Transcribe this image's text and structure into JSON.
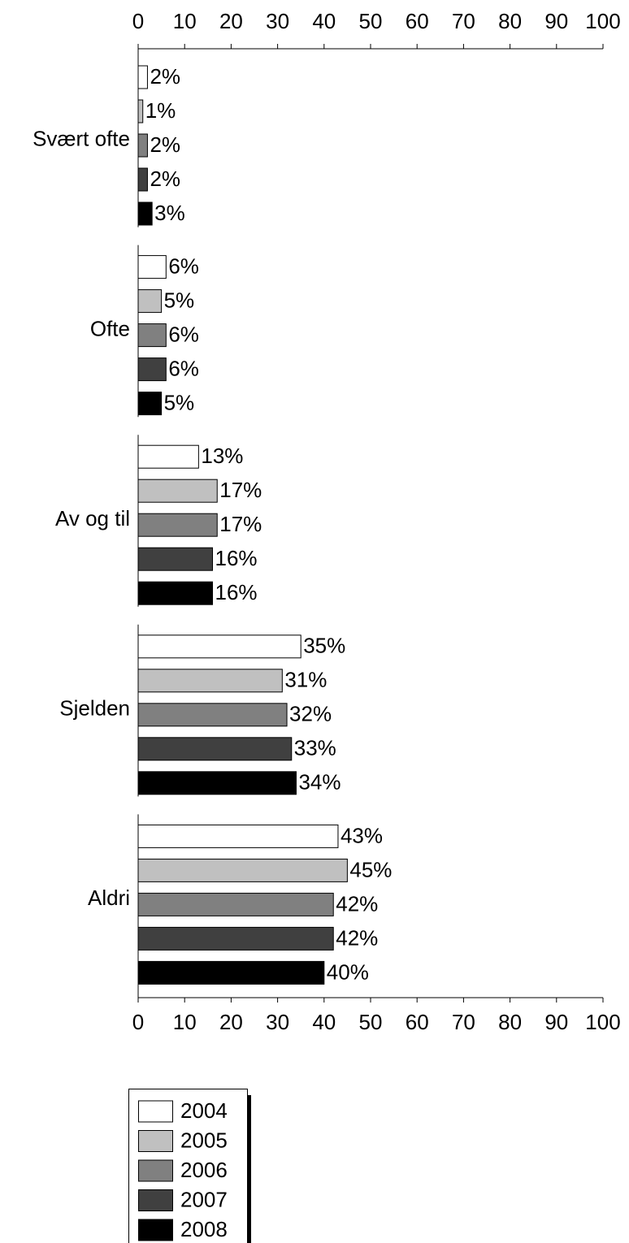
{
  "chart_data": {
    "type": "bar",
    "orientation": "horizontal",
    "categories": [
      "Svært ofte",
      "Ofte",
      "Av og til",
      "Sjelden",
      "Aldri"
    ],
    "series": [
      {
        "name": "2004",
        "color": "#ffffff",
        "values": [
          2,
          6,
          13,
          35,
          43
        ],
        "value_labels": [
          "2%",
          "6%",
          "13%",
          "35%",
          "43%"
        ]
      },
      {
        "name": "2005",
        "color": "#c0c0c0",
        "values": [
          1,
          5,
          17,
          31,
          45
        ],
        "value_labels": [
          "1%",
          "5%",
          "17%",
          "31%",
          "45%"
        ]
      },
      {
        "name": "2006",
        "color": "#808080",
        "values": [
          2,
          6,
          17,
          32,
          42
        ],
        "value_labels": [
          "2%",
          "6%",
          "17%",
          "32%",
          "42%"
        ]
      },
      {
        "name": "2007",
        "color": "#404040",
        "values": [
          2,
          6,
          16,
          33,
          42
        ],
        "value_labels": [
          "2%",
          "6%",
          "16%",
          "33%",
          "42%"
        ]
      },
      {
        "name": "2008",
        "color": "#000000",
        "values": [
          3,
          5,
          16,
          34,
          40
        ],
        "value_labels": [
          "3%",
          "5%",
          "16%",
          "34%",
          "40%"
        ]
      }
    ],
    "xlim": [
      0,
      100
    ],
    "xticks": [
      0,
      10,
      20,
      30,
      40,
      50,
      60,
      70,
      80,
      90,
      100
    ],
    "legend": "bottom-left"
  }
}
